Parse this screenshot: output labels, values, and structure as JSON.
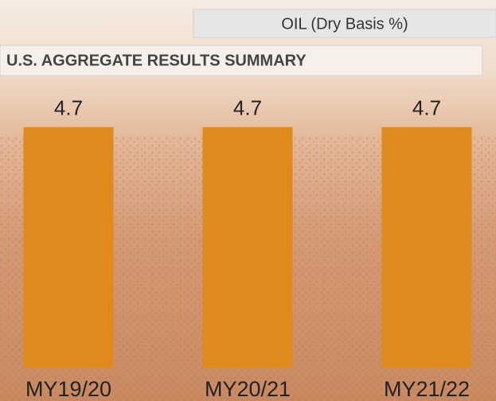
{
  "chart_data": {
    "type": "bar",
    "title": "OIL (Dry Basis %)",
    "subtitle": "U.S. AGGREGATE RESULTS SUMMARY",
    "categories": [
      "MY19/20",
      "MY20/21",
      "MY21/22"
    ],
    "values": [
      4.7,
      4.7,
      4.7
    ],
    "color": "#e08a1e"
  }
}
